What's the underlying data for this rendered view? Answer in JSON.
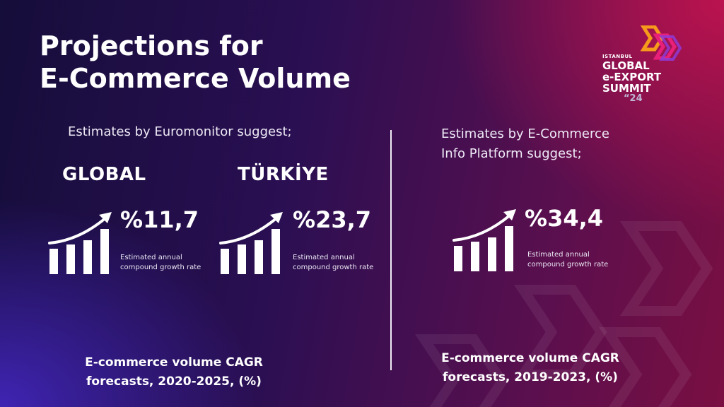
{
  "title": {
    "line1": "Projections for",
    "line2": "E-Commerce Volume"
  },
  "logo": {
    "line1": "ISTANBUL",
    "line2": "GLOBAL",
    "line3": "e-EXPORT",
    "line4": "SUMMIT",
    "line5": "“24"
  },
  "left": {
    "intro": "Estimates by Euromonitor suggest;",
    "global": {
      "label": "GLOBAL",
      "value": "%11,7",
      "caption1": "Estimated annual",
      "caption2": "compound growth rate",
      "icon": "growth-chart-icon"
    },
    "turkiye": {
      "label": "TÜRKİYE",
      "value": "%23,7",
      "caption1": "Estimated annual",
      "caption2": "compound growth rate",
      "icon": "growth-chart-icon"
    },
    "footer1": "E-commerce volume CAGR",
    "footer2": "forecasts, 2020-2025, (%)"
  },
  "right": {
    "intro1": "Estimates by E-Commerce",
    "intro2": "Info Platform suggest;",
    "value": "%34,4",
    "caption1": "Estimated annual",
    "caption2": "compound growth rate",
    "icon": "growth-chart-icon",
    "footer1": "E-commerce volume CAGR",
    "footer2": "forecasts, 2019-2023, (%)"
  },
  "colors": {
    "logo_orange": "#f59a1b",
    "logo_pink": "#e8207a",
    "logo_purple": "#8e3bd6",
    "text": "#ffffff"
  }
}
